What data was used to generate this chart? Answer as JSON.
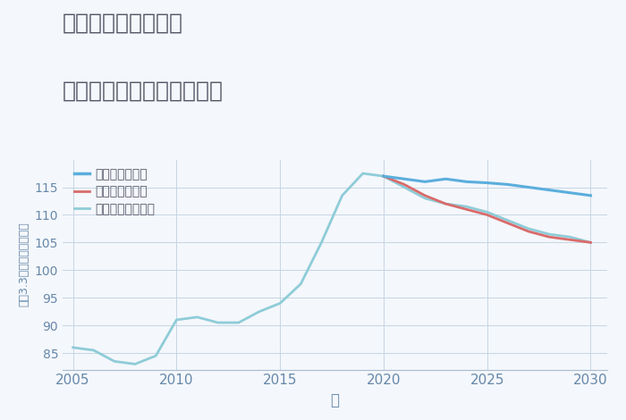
{
  "title_line1": "兵庫県姫路市幸町の",
  "title_line2": "中古マンションの価格推移",
  "xlabel": "年",
  "ylabel": "坪（3.3㎡）単価（万円）",
  "legend_good": "グッドシナリオ",
  "legend_bad": "バッドシナリオ",
  "legend_normal": "ノーマルシナリオ",
  "color_good": "#5aaedd",
  "color_bad": "#d96b6b",
  "color_normal": "#8eccd8",
  "bg_color": "#f4f7fb",
  "grid_color": "#c5d5e5",
  "title_color": "#555566",
  "axis_label_color": "#6688aa",
  "tick_color": "#6688aa",
  "years_historical": [
    2005,
    2006,
    2007,
    2008,
    2009,
    2010,
    2011,
    2012,
    2013,
    2014,
    2015,
    2016,
    2017,
    2018,
    2019,
    2020
  ],
  "values_historical": [
    86.0,
    85.5,
    83.5,
    83.0,
    84.5,
    91.0,
    91.5,
    90.5,
    90.5,
    92.5,
    94.0,
    97.5,
    105.0,
    113.5,
    117.5,
    117.0
  ],
  "years_future": [
    2020,
    2021,
    2022,
    2023,
    2024,
    2025,
    2026,
    2027,
    2028,
    2029,
    2030
  ],
  "values_good": [
    117.0,
    116.5,
    116.0,
    116.5,
    116.0,
    115.8,
    115.5,
    115.0,
    114.5,
    114.0,
    113.5
  ],
  "values_bad": [
    117.0,
    115.5,
    113.5,
    112.0,
    111.0,
    110.0,
    108.5,
    107.0,
    106.0,
    105.5,
    105.0
  ],
  "values_normal": [
    117.0,
    115.0,
    113.0,
    112.0,
    111.5,
    110.5,
    109.0,
    107.5,
    106.5,
    106.0,
    105.0
  ],
  "ylim": [
    82,
    120
  ],
  "yticks": [
    85,
    90,
    95,
    100,
    105,
    110,
    115
  ],
  "xlim": [
    2004.5,
    2030.8
  ],
  "xticks": [
    2005,
    2010,
    2015,
    2020,
    2025,
    2030
  ]
}
